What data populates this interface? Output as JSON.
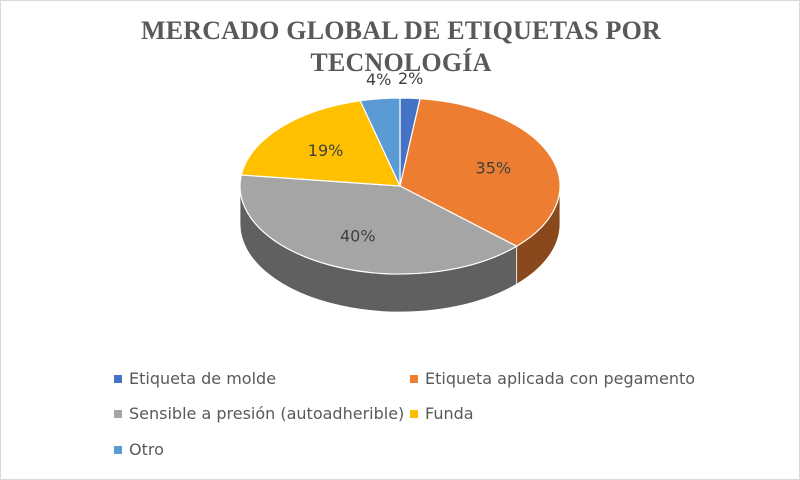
{
  "chart_data": {
    "type": "pie",
    "title_lines": [
      "MERCADO GLOBAL DE ETIQUETAS POR",
      "TECNOLOGÍA"
    ],
    "three_d": true,
    "legend_position": "bottom",
    "slices": [
      {
        "label": "Etiqueta de molde",
        "value": 2,
        "data_label": "2%",
        "color": "#4472c4"
      },
      {
        "label": "Etiqueta aplicada con pegamento",
        "value": 35,
        "data_label": "35%",
        "color": "#ed7d31"
      },
      {
        "label": "Sensible a presión (autoadherible)",
        "value": 40,
        "data_label": "40%",
        "color": "#a5a5a5"
      },
      {
        "label": "Funda",
        "value": 19,
        "data_label": "19%",
        "color": "#ffc000"
      },
      {
        "label": "Otro",
        "value": 4,
        "data_label": "4%",
        "color": "#5b9bd5"
      }
    ]
  }
}
